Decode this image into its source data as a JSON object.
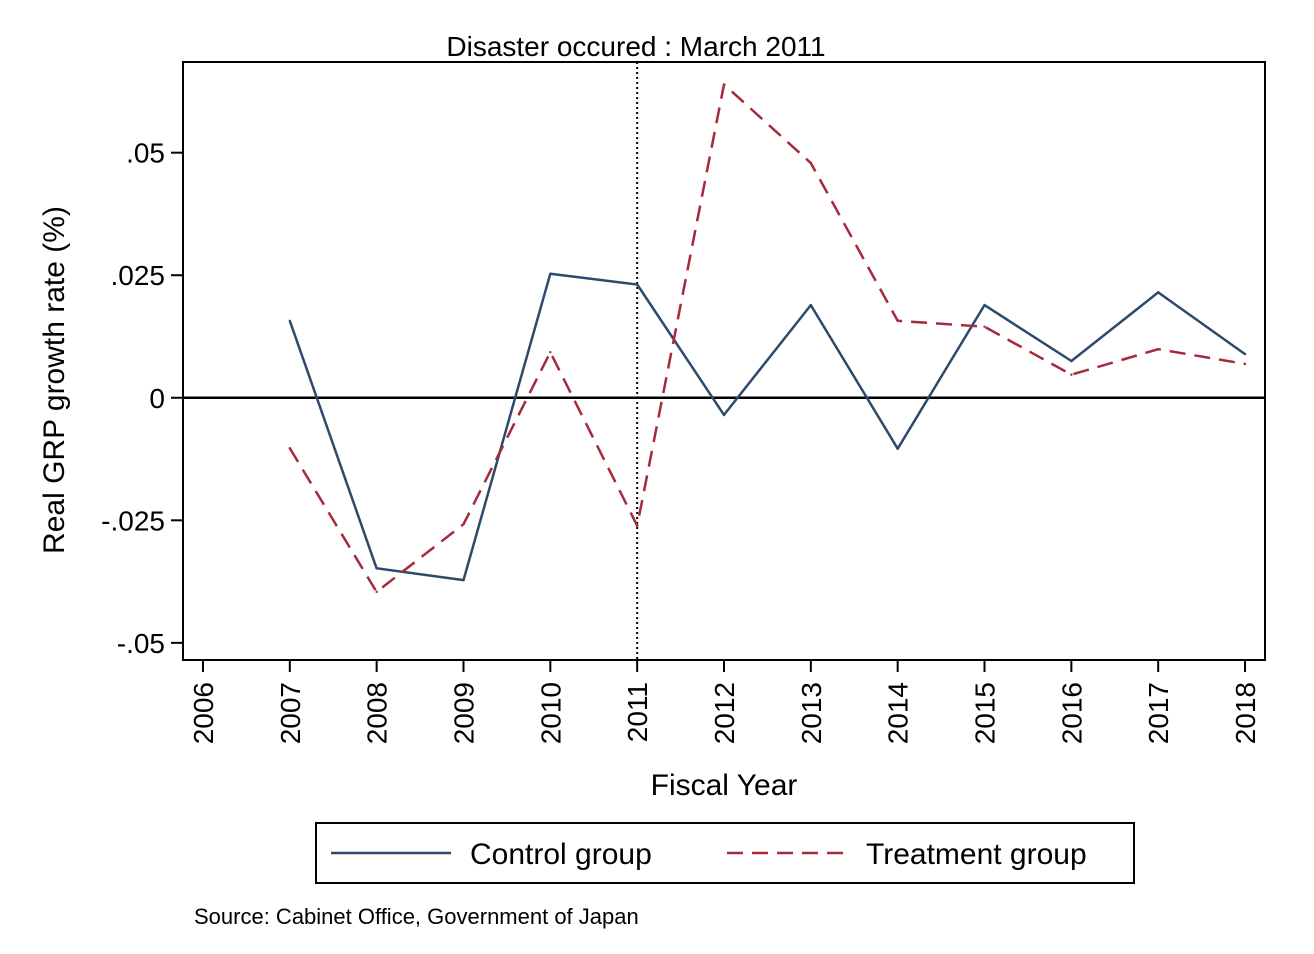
{
  "chart_data": {
    "type": "line",
    "annotation": "Disaster occured : March 2011",
    "xlabel": "Fiscal Year",
    "ylabel": "Real GRP growth rate (%)",
    "x": [
      2006,
      2007,
      2008,
      2009,
      2010,
      2011,
      2012,
      2013,
      2014,
      2015,
      2016,
      2017,
      2018
    ],
    "x_tick_labels": [
      "2006",
      "2007",
      "2008",
      "2009",
      "2010",
      "2011",
      "2012",
      "2013",
      "2014",
      "2015",
      "2016",
      "2017",
      "2018"
    ],
    "xlim": [
      2005.77,
      2018.23
    ],
    "ylim": [
      -0.0535,
      0.0685
    ],
    "y_ticks": [
      -0.05,
      -0.025,
      0,
      0.025,
      0.05
    ],
    "y_tick_labels": [
      "-.05",
      "-.025",
      "0",
      ".025",
      ".05"
    ],
    "reference_vline": 2011,
    "reference_hline": 0,
    "legend_position": "bottom",
    "series": [
      {
        "name": "Control group",
        "color": "#2e4a6b",
        "dash": "solid",
        "x": [
          2007,
          2008,
          2009,
          2010,
          2011,
          2012,
          2013,
          2014,
          2015,
          2016,
          2017,
          2018
        ],
        "values": [
          0.0157,
          -0.0348,
          -0.0372,
          0.0253,
          0.0231,
          -0.0035,
          0.0189,
          -0.0104,
          0.0189,
          0.0075,
          0.0215,
          0.0089
        ]
      },
      {
        "name": "Treatment group",
        "color": "#a52a3a",
        "dash": "dashed",
        "x": [
          2007,
          2008,
          2009,
          2010,
          2011,
          2012,
          2013,
          2014,
          2015,
          2016,
          2017,
          2018
        ],
        "values": [
          -0.0103,
          -0.0396,
          -0.0258,
          0.0093,
          -0.0261,
          0.0639,
          0.0479,
          0.0157,
          0.0145,
          0.0047,
          0.0099,
          0.0069
        ]
      }
    ],
    "source": "Source: Cabinet Office, Government of Japan"
  }
}
